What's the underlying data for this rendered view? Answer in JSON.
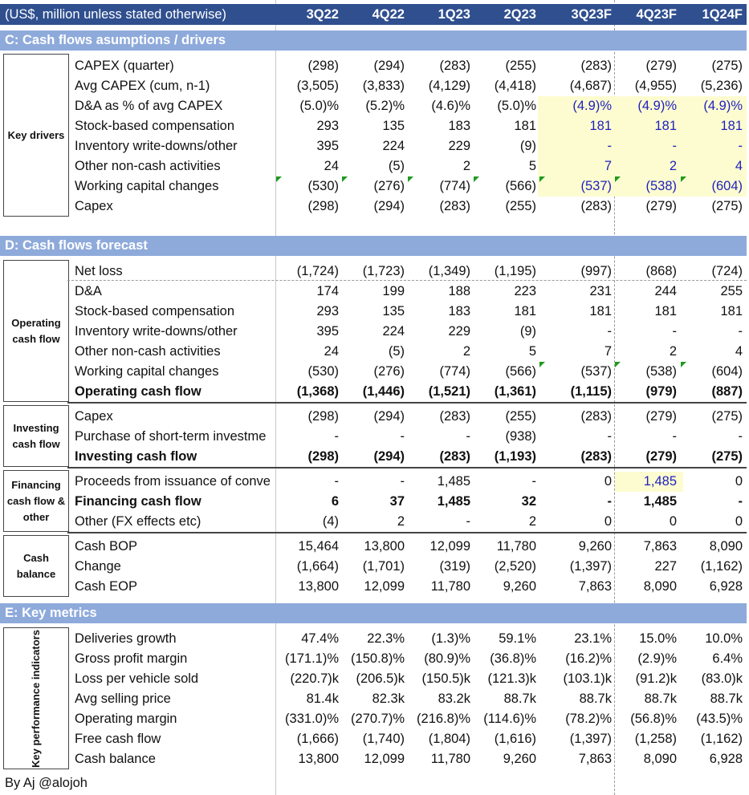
{
  "header": {
    "title": "(US$, million unless stated otherwise)",
    "columns": [
      "3Q22",
      "4Q22",
      "1Q23",
      "2Q23",
      "3Q23F",
      "4Q23F",
      "1Q24F"
    ]
  },
  "sections": {
    "c": "C: Cash flows asumptions / drivers",
    "d": "D: Cash flows forecast",
    "e": "E: Key metrics"
  },
  "groups": {
    "key_drivers": "Key drivers",
    "operating": "Operating cash flow",
    "investing": "Investing cash flow",
    "financing": "Financing cash flow & other",
    "cash_balance": "Cash balance",
    "kpi": "Key performance indicators"
  },
  "rows": [
    {
      "label": "CAPEX (quarter)",
      "values": [
        "(298)",
        "(294)",
        "(283)",
        "(255)",
        "(283)",
        "(279)",
        "(275)"
      ]
    },
    {
      "label": "Avg CAPEX (cum, n-1)",
      "values": [
        "(3,505)",
        "(3,833)",
        "(4,129)",
        "(4,418)",
        "(4,687)",
        "(4,955)",
        "(5,236)"
      ]
    },
    {
      "label": "D&A as % of avg CAPEX",
      "values": [
        "(5.0)%",
        "(5.2)%",
        "(4.6)%",
        "(5.0)%",
        "(4.9)%",
        "(4.9)%",
        "(4.9)%"
      ]
    },
    {
      "label": "Stock-based compensation",
      "values": [
        "293",
        "135",
        "183",
        "181",
        "181",
        "181",
        "181"
      ]
    },
    {
      "label": "Inventory write-downs/other",
      "values": [
        "395",
        "224",
        "229",
        "(9)",
        "-",
        "-",
        "-"
      ]
    },
    {
      "label": "Other non-cash activities",
      "values": [
        "24",
        "(5)",
        "2",
        "5",
        "7",
        "2",
        "4"
      ]
    },
    {
      "label": "Working capital changes",
      "values": [
        "(530)",
        "(276)",
        "(774)",
        "(566)",
        "(537)",
        "(538)",
        "(604)"
      ]
    },
    {
      "label": "Capex",
      "values": [
        "(298)",
        "(294)",
        "(283)",
        "(255)",
        "(283)",
        "(279)",
        "(275)"
      ]
    },
    {
      "label": "Net loss",
      "values": [
        "(1,724)",
        "(1,723)",
        "(1,349)",
        "(1,195)",
        "(997)",
        "(868)",
        "(724)"
      ]
    },
    {
      "label": "D&A",
      "values": [
        "174",
        "199",
        "188",
        "223",
        "231",
        "244",
        "255"
      ]
    },
    {
      "label": "Stock-based compensation",
      "values": [
        "293",
        "135",
        "183",
        "181",
        "181",
        "181",
        "181"
      ]
    },
    {
      "label": "Inventory write-downs/other",
      "values": [
        "395",
        "224",
        "229",
        "(9)",
        "-",
        "-",
        "-"
      ]
    },
    {
      "label": "Other non-cash activities",
      "values": [
        "24",
        "(5)",
        "2",
        "5",
        "7",
        "2",
        "4"
      ]
    },
    {
      "label": "Working capital changes",
      "values": [
        "(530)",
        "(276)",
        "(774)",
        "(566)",
        "(537)",
        "(538)",
        "(604)"
      ]
    },
    {
      "label": "Operating cash flow",
      "values": [
        "(1,368)",
        "(1,446)",
        "(1,521)",
        "(1,361)",
        "(1,115)",
        "(979)",
        "(887)"
      ]
    },
    {
      "label": "Capex",
      "values": [
        "(298)",
        "(294)",
        "(283)",
        "(255)",
        "(283)",
        "(279)",
        "(275)"
      ]
    },
    {
      "label": "Purchase of short-term investme",
      "values": [
        "-",
        "-",
        "-",
        "(938)",
        "-",
        "-",
        "-"
      ]
    },
    {
      "label": "Investing cash flow",
      "values": [
        "(298)",
        "(294)",
        "(283)",
        "(1,193)",
        "(283)",
        "(279)",
        "(275)"
      ]
    },
    {
      "label": "Proceeds from issuance of conve",
      "values": [
        "-",
        "-",
        "1,485",
        "-",
        "0",
        "1,485",
        "0"
      ]
    },
    {
      "label": "Financing cash flow",
      "values": [
        "6",
        "37",
        "1,485",
        "32",
        "-",
        "1,485",
        "-"
      ]
    },
    {
      "label": "Other (FX effects etc)",
      "values": [
        "(4)",
        "2",
        "-",
        "2",
        "0",
        "0",
        "0"
      ]
    },
    {
      "label": "Cash BOP",
      "values": [
        "15,464",
        "13,800",
        "12,099",
        "11,780",
        "9,260",
        "7,863",
        "8,090"
      ]
    },
    {
      "label": "Change",
      "values": [
        "(1,664)",
        "(1,701)",
        "(319)",
        "(2,520)",
        "(1,397)",
        "227",
        "(1,162)"
      ]
    },
    {
      "label": "Cash EOP",
      "values": [
        "13,800",
        "12,099",
        "11,780",
        "9,260",
        "7,863",
        "8,090",
        "6,928"
      ]
    },
    {
      "label": "Deliveries growth",
      "values": [
        "47.4%",
        "22.3%",
        "(1.3)%",
        "59.1%",
        "23.1%",
        "15.0%",
        "10.0%"
      ]
    },
    {
      "label": "Gross profit margin",
      "values": [
        "(171.1)%",
        "(150.8)%",
        "(80.9)%",
        "(36.8)%",
        "(16.2)%",
        "(2.9)%",
        "6.4%"
      ]
    },
    {
      "label": "Loss per vehicle sold",
      "values": [
        "(220.7)k",
        "(206.5)k",
        "(150.5)k",
        "(121.3)k",
        "(103.1)k",
        "(91.2)k",
        "(83.0)k"
      ]
    },
    {
      "label": "Avg selling price",
      "values": [
        "81.4k",
        "82.3k",
        "83.2k",
        "88.7k",
        "88.7k",
        "88.7k",
        "88.7k"
      ]
    },
    {
      "label": "Operating margin",
      "values": [
        "(331.0)%",
        "(270.7)%",
        "(216.8)%",
        "(114.6)%",
        "(78.2)%",
        "(56.8)%",
        "(43.5)%"
      ]
    },
    {
      "label": "Free cash flow",
      "values": [
        "(1,666)",
        "(1,740)",
        "(1,804)",
        "(1,616)",
        "(1,397)",
        "(1,258)",
        "(1,162)"
      ]
    },
    {
      "label": "Cash balance",
      "values": [
        "13,800",
        "12,099",
        "11,780",
        "9,260",
        "7,863",
        "8,090",
        "6,928"
      ]
    }
  ],
  "colors": {
    "header": "#2f4f8f",
    "section": "#8eaadb",
    "input_blue": "#1f1fbf",
    "highlight": "#fcfcd0"
  },
  "footer": "By Aj @alojoh"
}
